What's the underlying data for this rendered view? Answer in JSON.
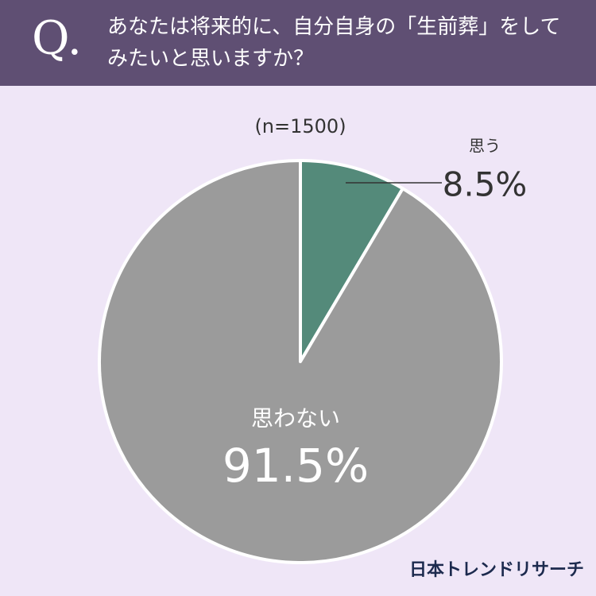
{
  "chart_data": {
    "type": "pie",
    "question_marker": "Q.",
    "title": "あなたは将来的に、自分自身の「生前葬」をしてみたいと思いますか？",
    "subtitle": "(n=1500)",
    "categories": [
      "思う",
      "思わない"
    ],
    "values": [
      8.5,
      91.5
    ],
    "value_labels": [
      "8.5%",
      "91.5%"
    ],
    "colors": [
      "#548a7a",
      "#9b9b9b"
    ],
    "source": "日本トレンドリサーチ"
  }
}
